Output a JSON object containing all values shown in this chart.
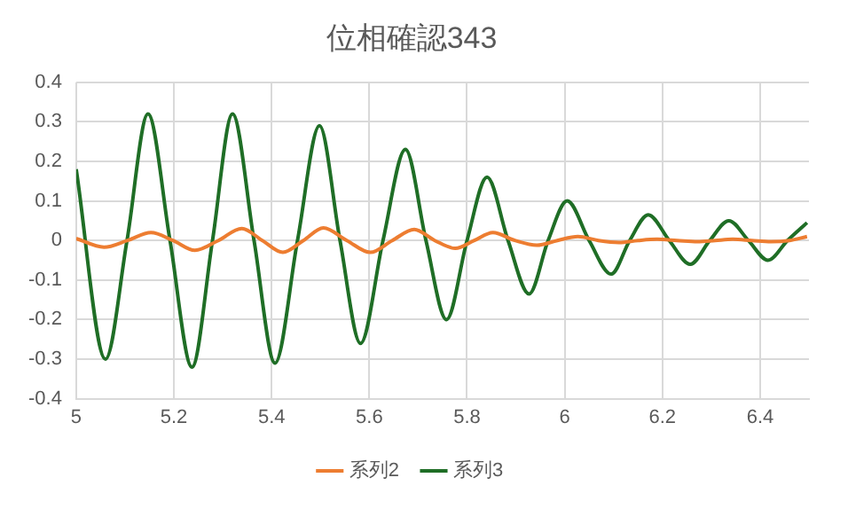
{
  "chart_data": {
    "type": "line",
    "title": "位相確認343",
    "xlim": [
      5,
      6.5
    ],
    "xticks": [
      5,
      5.2,
      5.4,
      5.6,
      5.8,
      6,
      6.2,
      6.4
    ],
    "ylim": [
      -0.4,
      0.4
    ],
    "yticks": [
      -0.4,
      -0.3,
      -0.2,
      -0.1,
      0,
      0.1,
      0.2,
      0.3,
      0.4
    ],
    "grid": true,
    "legend": "bottom",
    "marker": "none",
    "line_style": "solid",
    "series": [
      {
        "name": "系列2",
        "color": "#ed7d31",
        "x": [
          5,
          5.057,
          5.105,
          5.153,
          5.198,
          5.243,
          5.291,
          5.339,
          5.381,
          5.423,
          5.465,
          5.506,
          5.554,
          5.602,
          5.647,
          5.692,
          5.734,
          5.776,
          5.815,
          5.853,
          5.898,
          5.943,
          5.985,
          6.027,
          6.069,
          6.111,
          6.15,
          6.189,
          6.23,
          6.272,
          6.308,
          6.344,
          6.383,
          6.422,
          6.46,
          6.496
        ],
        "values": [
          0.005,
          -0.017,
          0,
          0.02,
          0,
          -0.025,
          0,
          0.03,
          0,
          -0.03,
          0,
          0.032,
          0,
          -0.03,
          0,
          0.028,
          0,
          -0.02,
          0,
          0.02,
          0,
          -0.012,
          0,
          0.01,
          0,
          -0.005,
          0,
          0.003,
          0,
          -0.003,
          0,
          0.003,
          0,
          -0.003,
          0,
          0.01
        ]
      },
      {
        "name": "系列3",
        "color": "#1f6e26",
        "x": [
          5,
          5.06,
          5.104,
          5.147,
          5.192,
          5.237,
          5.279,
          5.32,
          5.364,
          5.407,
          5.453,
          5.498,
          5.54,
          5.582,
          5.628,
          5.674,
          5.716,
          5.758,
          5.8,
          5.841,
          5.884,
          5.927,
          5.966,
          6.005,
          6.05,
          6.095,
          6.133,
          6.171,
          6.214,
          6.257,
          6.297,
          6.336,
          6.376,
          6.416,
          6.456,
          6.496
        ],
        "values": [
          0.18,
          -0.3,
          0,
          0.32,
          0,
          -0.32,
          0,
          0.32,
          0,
          -0.31,
          0,
          0.29,
          0,
          -0.26,
          0,
          0.23,
          0,
          -0.2,
          0,
          0.16,
          0,
          -0.135,
          0,
          0.1,
          0,
          -0.085,
          0,
          0.065,
          0,
          -0.06,
          0,
          0.05,
          0,
          -0.05,
          0,
          0.045
        ]
      }
    ]
  }
}
